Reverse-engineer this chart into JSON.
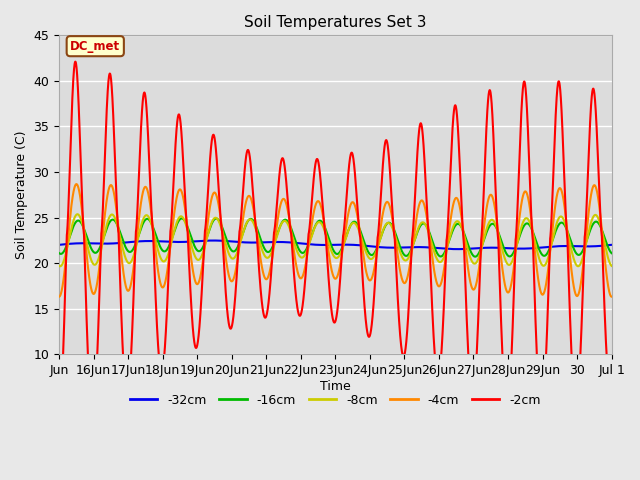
{
  "title": "Soil Temperatures Set 3",
  "xlabel": "Time",
  "ylabel": "Soil Temperature (C)",
  "ylim": [
    10,
    45
  ],
  "background_color": "#e8e8e8",
  "plot_bg_color": "#dcdcdc",
  "grid_color": "#ffffff",
  "annotation_text": "DC_met",
  "annotation_bg": "#ffffcc",
  "annotation_border": "#8b4513",
  "annotation_text_color": "#cc0000",
  "series_colors": {
    "-32cm": "#0000ee",
    "-16cm": "#00bb00",
    "-8cm": "#cccc00",
    "-4cm": "#ff8800",
    "-2cm": "#ff0000"
  },
  "legend_labels": [
    "-32cm",
    "-16cm",
    "-8cm",
    "-4cm",
    "-2cm"
  ],
  "x_tick_labels": [
    "Jun",
    "16Jun",
    "17Jun",
    "18Jun",
    "19Jun",
    "20Jun",
    "21Jun",
    "22Jun",
    "23Jun",
    "24Jun",
    "25Jun",
    "26Jun",
    "27Jun",
    "28Jun",
    "29Jun",
    "30",
    "Jul 1"
  ],
  "x_tick_positions": [
    0,
    1,
    2,
    3,
    4,
    5,
    6,
    7,
    8,
    9,
    10,
    11,
    12,
    13,
    14,
    15,
    16
  ],
  "yticks": [
    10,
    15,
    20,
    25,
    30,
    35,
    40,
    45
  ],
  "figsize": [
    6.4,
    4.8
  ],
  "dpi": 100
}
